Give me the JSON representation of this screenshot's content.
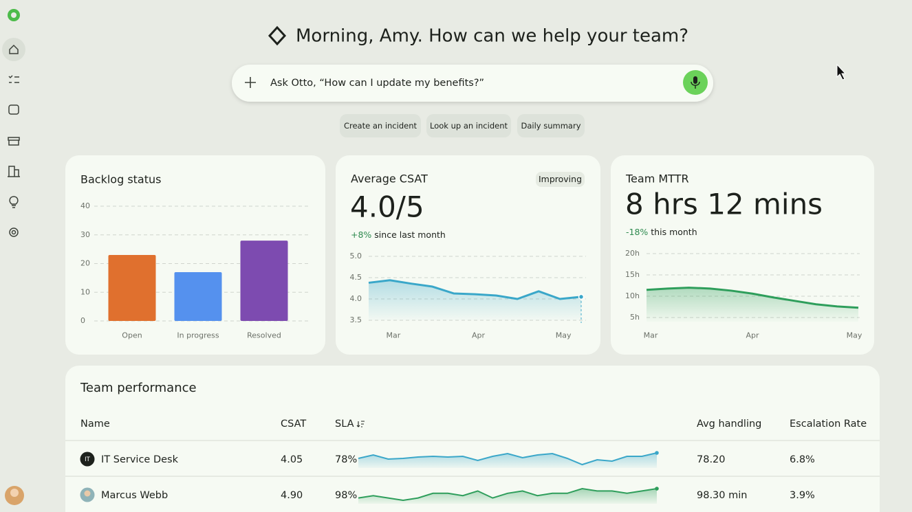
{
  "greeting": "Morning, Amy. How can we help your team?",
  "search_placeholder": "Ask Otto, “How can I update my benefits?”",
  "suggestions": [
    "Create an incident",
    "Look up an incident",
    "Daily summary"
  ],
  "chart_data": [
    {
      "type": "bar",
      "title": "Backlog status",
      "categories": [
        "Open",
        "In progress",
        "Resolved"
      ],
      "values": [
        23,
        17,
        28
      ],
      "colors": [
        "#e0702e",
        "#5591ee",
        "#7d4bb0"
      ],
      "ylim": [
        0,
        40
      ],
      "yticks": [
        0,
        10,
        20,
        30,
        40
      ],
      "grid": true
    },
    {
      "type": "line",
      "title": "Average CSAT",
      "badge": "Improving",
      "headline": "4.0/5",
      "change": "+8%",
      "change_note": "since last month",
      "categories": [
        null,
        "Mar",
        null,
        null,
        null,
        "Apr",
        null,
        null,
        null,
        "May",
        null
      ],
      "values": [
        4.38,
        4.44,
        4.36,
        4.29,
        4.13,
        4.11,
        4.08,
        4.0,
        4.18,
        4.0,
        4.05
      ],
      "color": "#3aa7c9",
      "ylim": [
        3.5,
        5.0
      ],
      "yticks": [
        3.5,
        {
          "value": 4,
          "label": "4.0"
        },
        4.5,
        {
          "value": 5,
          "label": "5.0"
        }
      ],
      "grid": true
    },
    {
      "type": "line",
      "title": "Team MTTR",
      "headline": "8 hrs 12 mins",
      "change": "-18%",
      "change_note": "this month",
      "categories": [
        "Mar",
        null,
        null,
        null,
        null,
        "Apr",
        null,
        null,
        null,
        null,
        "May"
      ],
      "values": [
        11.5,
        11.8,
        12,
        11.8,
        11.3,
        10.6,
        9.7,
        8.9,
        8.1,
        7.6,
        7.3
      ],
      "color": "#2e9e5b",
      "ylim": [
        4,
        20
      ],
      "yticks": [
        {
          "value": 5,
          "label": "5h"
        },
        {
          "value": 10,
          "label": "10h"
        },
        {
          "value": 15,
          "label": "15h"
        },
        {
          "value": 20,
          "label": "20h"
        }
      ],
      "grid": true
    }
  ],
  "table": {
    "title": "Team performance",
    "columns": [
      "Name",
      "CSAT",
      "SLA",
      "Avg handling",
      "Escalation Rate"
    ],
    "rows": [
      {
        "initials": "IT",
        "name": "IT Service Desk",
        "csat": "4.05",
        "sla": "78%",
        "color": "#3aa7c9",
        "sla_trend": [
          17,
          22,
          16,
          17,
          19,
          20,
          19,
          20,
          14,
          20,
          24,
          18,
          22,
          24,
          17,
          8,
          15,
          13,
          20,
          20,
          25
        ],
        "avg_handling": "78.20",
        "escalation_rate": "6.8%"
      },
      {
        "name": "Marcus Webb",
        "csat": "4.90",
        "sla": "98%",
        "color": "#2e9e5b",
        "sla_trend": [
          18,
          19,
          18,
          17,
          18,
          20,
          20,
          19,
          21,
          18,
          20,
          21,
          19,
          20,
          20,
          22,
          21,
          21,
          20,
          21,
          22
        ],
        "avg_handling": "98.30 min",
        "escalation_rate": "3.9%"
      }
    ]
  }
}
